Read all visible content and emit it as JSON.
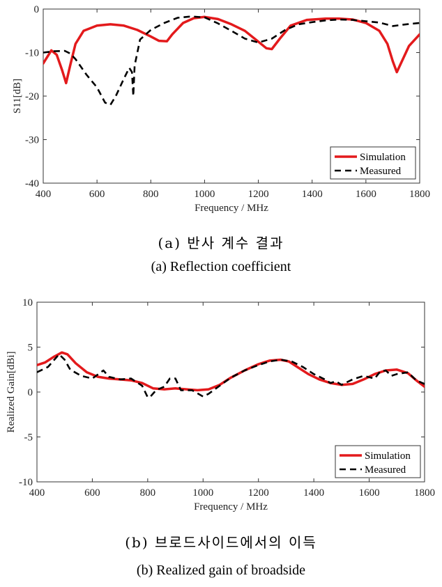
{
  "colors": {
    "simulation": "#e31a1c",
    "measured": "#000000"
  },
  "captions": {
    "a_ko": "(a) 반사 계수 결과",
    "a_en": "(a) Reflection coefficient",
    "b_ko": "(b) 브로드사이드에서의 이득",
    "b_en": "(b) Realized gain of broadside"
  },
  "chart_data": [
    {
      "type": "line",
      "xlabel": "Frequency / MHz",
      "ylabel": "S11[dB]",
      "xlim": [
        400,
        1800
      ],
      "ylim": [
        -40,
        0
      ],
      "xticks": [
        400,
        600,
        800,
        1000,
        1200,
        1400,
        1600,
        1800
      ],
      "yticks": [
        0,
        -10,
        -20,
        -30,
        -40
      ],
      "grid": false,
      "legend": "bottom-right",
      "series": [
        {
          "name": "Simulation",
          "style": "solid",
          "x": [
            400,
            430,
            450,
            470,
            485,
            500,
            520,
            550,
            600,
            650,
            700,
            750,
            800,
            830,
            860,
            880,
            920,
            960,
            1000,
            1050,
            1100,
            1150,
            1200,
            1230,
            1250,
            1280,
            1320,
            1380,
            1450,
            1500,
            1550,
            1600,
            1650,
            1680,
            1700,
            1715,
            1730,
            1760,
            1800
          ],
          "y": [
            -12.5,
            -9.5,
            -10.5,
            -14,
            -17,
            -13,
            -8,
            -5,
            -3.8,
            -3.5,
            -3.8,
            -4.8,
            -6.3,
            -7.3,
            -7.4,
            -5.8,
            -3.2,
            -2.1,
            -1.8,
            -2.3,
            -3.5,
            -5,
            -7.5,
            -9,
            -9.2,
            -6.8,
            -3.8,
            -2.5,
            -2.2,
            -2.2,
            -2.4,
            -3.2,
            -5,
            -8,
            -12,
            -14.5,
            -12.5,
            -8.5,
            -5.8
          ]
        },
        {
          "name": "Measured",
          "style": "dashed",
          "x": [
            400,
            440,
            480,
            500,
            520,
            560,
            600,
            630,
            650,
            670,
            700,
            720,
            730,
            735,
            740,
            760,
            800,
            850,
            900,
            950,
            1000,
            1050,
            1100,
            1150,
            1200,
            1250,
            1300,
            1350,
            1400,
            1450,
            1500,
            1550,
            1600,
            1650,
            1700,
            1750,
            1800
          ],
          "y": [
            -10,
            -9.7,
            -9.6,
            -10.2,
            -11.5,
            -15,
            -18,
            -21.5,
            -22,
            -20,
            -16,
            -13.5,
            -14.5,
            -20,
            -13,
            -7,
            -4.8,
            -3.2,
            -2,
            -1.7,
            -1.9,
            -3.3,
            -5,
            -6.8,
            -7.7,
            -6.8,
            -4.8,
            -3.5,
            -3,
            -2.6,
            -2.4,
            -2.5,
            -2.8,
            -3.1,
            -3.9,
            -3.5,
            -3.2
          ]
        }
      ]
    },
    {
      "type": "line",
      "xlabel": "Frequency / MHz",
      "ylabel": "Realized Gain[dBi]",
      "xlim": [
        400,
        1800
      ],
      "ylim": [
        -10,
        10
      ],
      "xticks": [
        400,
        600,
        800,
        1000,
        1200,
        1400,
        1600,
        1800
      ],
      "yticks": [
        10,
        5,
        0,
        -5,
        -10
      ],
      "grid": false,
      "legend": "bottom-right",
      "series": [
        {
          "name": "Simulation",
          "style": "solid",
          "x": [
            400,
            430,
            460,
            490,
            510,
            540,
            580,
            620,
            660,
            700,
            740,
            780,
            820,
            860,
            900,
            940,
            980,
            1020,
            1060,
            1100,
            1150,
            1200,
            1240,
            1280,
            1310,
            1340,
            1380,
            1420,
            1460,
            1500,
            1540,
            1580,
            1620,
            1660,
            1700,
            1740,
            1770,
            1800
          ],
          "y": [
            3,
            3.3,
            3.9,
            4.4,
            4.2,
            3.2,
            2.2,
            1.7,
            1.5,
            1.4,
            1.3,
            1,
            0.4,
            0.3,
            0.4,
            0.3,
            0.2,
            0.3,
            0.8,
            1.6,
            2.4,
            3.1,
            3.5,
            3.6,
            3.4,
            2.8,
            2,
            1.4,
            1,
            0.8,
            0.9,
            1.4,
            2,
            2.4,
            2.5,
            2.1,
            1.3,
            0.6
          ]
        },
        {
          "name": "Measured",
          "style": "dashed",
          "x": [
            400,
            420,
            440,
            460,
            480,
            500,
            520,
            560,
            600,
            640,
            660,
            700,
            740,
            780,
            800,
            810,
            830,
            860,
            880,
            900,
            920,
            960,
            1000,
            1020,
            1060,
            1100,
            1150,
            1200,
            1240,
            1280,
            1320,
            1360,
            1400,
            1440,
            1460,
            1480,
            1500,
            1540,
            1580,
            1620,
            1640,
            1660,
            1680,
            1700,
            1740,
            1770,
            1800
          ],
          "y": [
            2.2,
            2.5,
            2.8,
            3.5,
            4.2,
            3.6,
            2.5,
            1.8,
            1.5,
            2.4,
            1.7,
            1.4,
            1.5,
            0.7,
            -0.6,
            -0.5,
            0.2,
            0.6,
            1.5,
            1.5,
            0.2,
            0.2,
            -0.5,
            -0.2,
            0.7,
            1.6,
            2.4,
            3,
            3.4,
            3.6,
            3.4,
            2.8,
            2,
            1.4,
            1,
            1.2,
            0.8,
            1.4,
            1.8,
            1.5,
            2.3,
            2.4,
            1.8,
            2,
            2.2,
            1.3,
            0.9
          ]
        }
      ]
    }
  ]
}
